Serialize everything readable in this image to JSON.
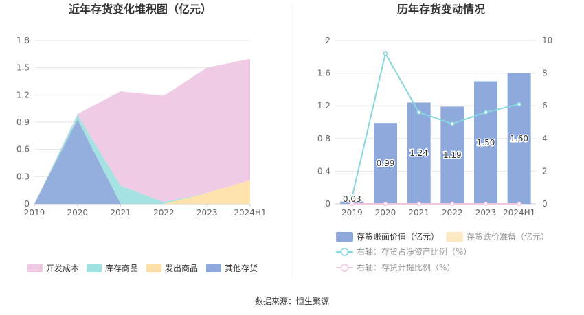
{
  "source_text": "数据来源：恒生聚源",
  "chart_data": [
    {
      "type": "area",
      "stacked": true,
      "title": "近年存货变化堆积图（亿元）",
      "categories": [
        "2019",
        "2020",
        "2021",
        "2022",
        "2023",
        "2024H1"
      ],
      "y_ticks": [
        "0",
        "0.3",
        "0.6",
        "0.9",
        "1.2",
        "1.5",
        "1.8"
      ],
      "ylim": [
        0,
        1.8
      ],
      "series": [
        {
          "name": "其他存货",
          "color": "#8eaadc",
          "values": [
            0.0,
            0.93,
            0.0,
            0.0,
            0.0,
            0.0
          ]
        },
        {
          "name": "发出商品",
          "color": "#fde0a8",
          "values": [
            0.0,
            0.0,
            0.0,
            0.0,
            0.12,
            0.26
          ]
        },
        {
          "name": "库存商品",
          "color": "#a0e2e2",
          "values": [
            0.0,
            0.05,
            0.2,
            0.02,
            0.0,
            0.0
          ]
        },
        {
          "name": "开发成本",
          "color": "#efc8e4",
          "values": [
            0.0,
            0.01,
            1.04,
            1.17,
            1.38,
            1.34
          ]
        }
      ],
      "legend_order": [
        "开发成本",
        "库存商品",
        "发出商品",
        "其他存货"
      ]
    },
    {
      "type": "bar",
      "title": "历年存货变动情况",
      "categories": [
        "2019",
        "2020",
        "2021",
        "2022",
        "2023",
        "2024H1"
      ],
      "y_left_ticks": [
        "0",
        "0.4",
        "0.8",
        "1.2",
        "1.6",
        "2"
      ],
      "y_right_ticks": [
        "0",
        "2",
        "4",
        "6",
        "8",
        "10"
      ],
      "ylim_left": [
        0,
        2
      ],
      "ylim_right": [
        0,
        10
      ],
      "bars": {
        "name": "存货账面价值（亿元）",
        "color": "#8eaadc",
        "values": [
          0.03,
          0.99,
          1.24,
          1.19,
          1.5,
          1.6
        ],
        "labels": [
          "0.03",
          "0.99",
          "1.24",
          "1.19",
          "1.50",
          "1.60"
        ]
      },
      "bars2": {
        "name": "存货跌价准备（亿元）",
        "color": "#fde8c4",
        "values": [
          0,
          0,
          0,
          0,
          0,
          0
        ]
      },
      "line1": {
        "name": "右轴：存货占净资产比例（%）",
        "color": "#86d6dc",
        "values": [
          0.4,
          9.2,
          5.6,
          4.9,
          5.6,
          6.1
        ]
      },
      "line2": {
        "name": "右轴：存货计提比例（%）",
        "color": "#f2c3dc",
        "values": [
          0,
          0,
          0,
          0,
          0,
          0
        ]
      }
    }
  ]
}
